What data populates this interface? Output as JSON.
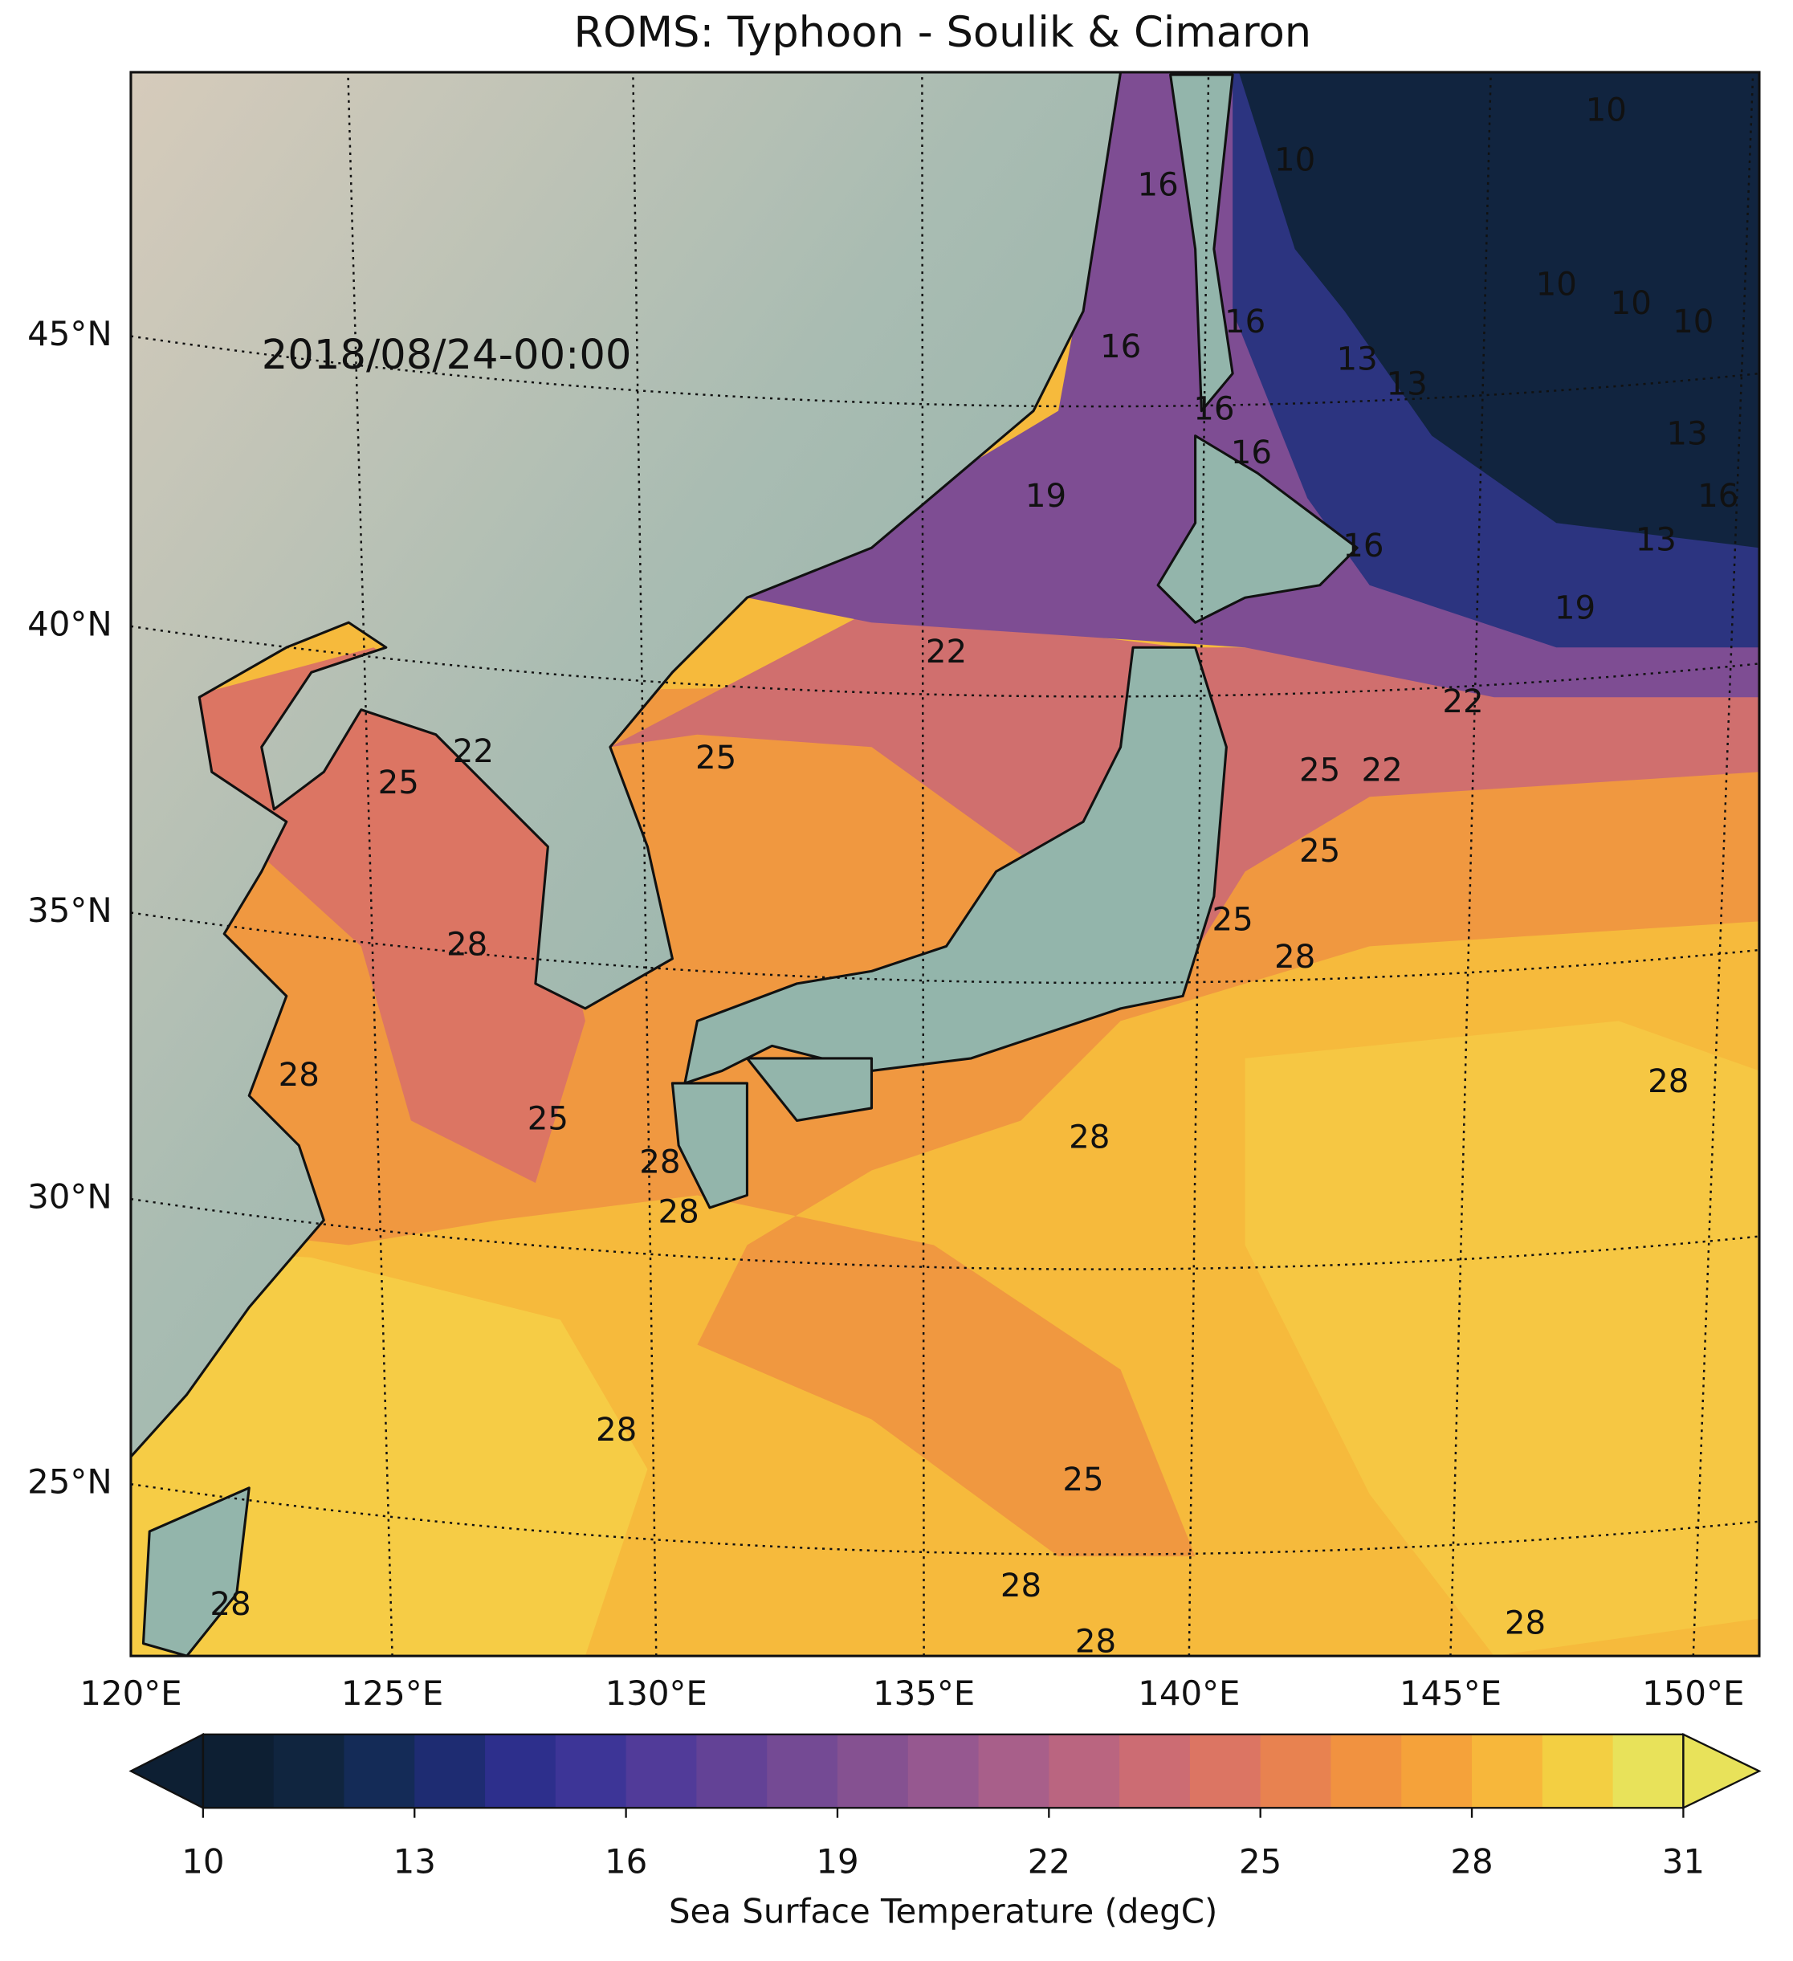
{
  "title": "ROMS: Typhoon - Soulik & Cimaron",
  "timestamp": "2018/08/24-00:00",
  "map": {
    "lat_labels": [
      "45°N",
      "40°N",
      "35°N",
      "30°N",
      "25°N"
    ],
    "lon_labels": [
      "120°E",
      "125°E",
      "130°E",
      "135°E",
      "140°E",
      "145°E",
      "150°E"
    ],
    "contour_labels": [
      16,
      10,
      10,
      16,
      16,
      13,
      13,
      10,
      10,
      10,
      16,
      16,
      19,
      16,
      13,
      16,
      13,
      19,
      22,
      22,
      22,
      25,
      25,
      25,
      22,
      25,
      25,
      28,
      28,
      28,
      25,
      28,
      28,
      28,
      28,
      28,
      25,
      28,
      28,
      28,
      28
    ]
  },
  "colorbar": {
    "label": "Sea Surface Temperature (degC)",
    "range": [
      10,
      31
    ],
    "ticks": [
      10,
      13,
      16,
      19,
      22,
      25,
      28,
      31
    ],
    "extend": "both",
    "colors": [
      "#0d1f33",
      "#10253f",
      "#142b57",
      "#1e2c72",
      "#2d2f8c",
      "#3d3597",
      "#513b99",
      "#634296",
      "#744a94",
      "#855191",
      "#965890",
      "#a85f8a",
      "#ba6580",
      "#cc6c73",
      "#dc7563",
      "#e88250",
      "#f19240",
      "#f5a23a",
      "#f7b73b",
      "#f3cf42",
      "#e8e25a"
    ]
  }
}
